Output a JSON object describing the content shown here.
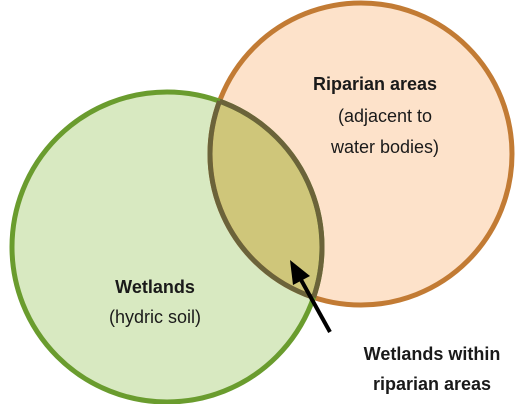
{
  "sets": [
    {
      "title": "Riparian areas",
      "description": [
        "(adjacent to",
        "water bodies)"
      ]
    },
    {
      "title": "Wetlands",
      "description": [
        "(hydric soil)"
      ]
    }
  ],
  "intersection": {
    "label": [
      "Wetlands within",
      "riparian areas"
    ]
  }
}
